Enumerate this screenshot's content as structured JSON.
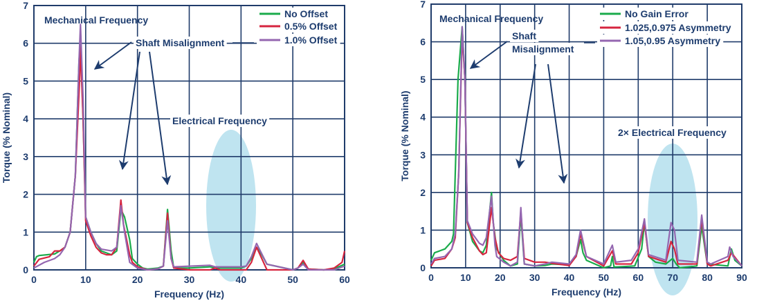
{
  "chart_data": [
    {
      "type": "line",
      "xlabel": "Frequency (Hz)",
      "ylabel": "Torque (% Nominal)",
      "xlim": [
        0,
        60
      ],
      "ylim": [
        0,
        7
      ],
      "xticks": [
        0,
        10,
        20,
        30,
        40,
        50,
        60
      ],
      "yticks": [
        0,
        1,
        2,
        3,
        4,
        5,
        6,
        7
      ],
      "grid": true,
      "legend": "top-right",
      "annotations": {
        "mechanical": "Mechanical Frequency",
        "shaft": "Shaft Misalignment",
        "electrical": "Electrical Frequency"
      },
      "series": [
        {
          "name": "No Offset",
          "color": "#1aab4b",
          "x": [
            0,
            0.5,
            1,
            4,
            5,
            6,
            7,
            8,
            8.7,
            9,
            9.5,
            10,
            11,
            12,
            13,
            15,
            16,
            16.8,
            17.5,
            18.5,
            19,
            20,
            21,
            22,
            24,
            25,
            25.8,
            26.5,
            27,
            30,
            34,
            35,
            40,
            41,
            42,
            43,
            44,
            45,
            50,
            51,
            52,
            53,
            56,
            58,
            60
          ],
          "y": [
            0.2,
            0.35,
            0.38,
            0.42,
            0.5,
            0.6,
            1.0,
            2.5,
            5.5,
            6.1,
            4,
            1.4,
            1.0,
            0.7,
            0.5,
            0.4,
            0.5,
            1.6,
            1.4,
            0.8,
            0.3,
            0.15,
            0.05,
            0.02,
            0.05,
            0.1,
            1.6,
            0.5,
            0.05,
            0.05,
            0.08,
            0.05,
            0.05,
            0.1,
            0.3,
            0.6,
            0.4,
            0.15,
            0,
            0.05,
            0.2,
            0.02,
            0,
            0.03,
            0.15
          ]
        },
        {
          "name": "0.5% Offset",
          "color": "#d6243f",
          "x": [
            0,
            1,
            3,
            4,
            5,
            6,
            7,
            8,
            8.8,
            9,
            9.5,
            10,
            11,
            12,
            13,
            14,
            15,
            16,
            16.8,
            17.3,
            18.5,
            19,
            20,
            22,
            24,
            25,
            25.8,
            26.5,
            27,
            30,
            34,
            35,
            36,
            41,
            42,
            43,
            45,
            50,
            51,
            52,
            53,
            56,
            58,
            59.5,
            60
          ],
          "y": [
            0.1,
            0.28,
            0.35,
            0.5,
            0.5,
            0.6,
            1.0,
            2.5,
            5.0,
            5.9,
            4,
            1.3,
            0.9,
            0.6,
            0.45,
            0.4,
            0.4,
            0.6,
            1.85,
            1.2,
            0.4,
            0.2,
            0.08,
            0,
            0.03,
            0.1,
            1.5,
            0.3,
            0.05,
            0,
            0,
            0.05,
            0,
            0,
            0.2,
            0.6,
            0,
            0,
            0.05,
            0.25,
            0.02,
            0,
            0.05,
            0.2,
            0.5
          ]
        },
        {
          "name": "1.0% Offset",
          "color": "#9466b0",
          "x": [
            0,
            2,
            4,
            5,
            6,
            7,
            8,
            8.7,
            9,
            9.5,
            10,
            11,
            12,
            13,
            15,
            16,
            16.8,
            17.5,
            18.5,
            20,
            22,
            24,
            25,
            25.8,
            26.5,
            27,
            34,
            35,
            40,
            41,
            42,
            43,
            45,
            50,
            51,
            52,
            53,
            56,
            58,
            60
          ],
          "y": [
            0.05,
            0.2,
            0.3,
            0.4,
            0.6,
            1.0,
            2.5,
            5.5,
            6.5,
            4.5,
            1.4,
            1.0,
            0.7,
            0.55,
            0.5,
            0.6,
            1.7,
            1.0,
            0.2,
            0.05,
            0,
            0.03,
            0.1,
            1.3,
            0.3,
            0.08,
            0.12,
            0.08,
            0.08,
            0.1,
            0.35,
            0.7,
            0.15,
            0,
            0.05,
            0.15,
            0,
            0,
            0,
            0.1
          ]
        }
      ]
    },
    {
      "type": "line",
      "xlabel": "Frequency (Hz)",
      "ylabel": "Torque (% Nominal)",
      "xlim": [
        0,
        90
      ],
      "ylim": [
        0,
        7
      ],
      "xticks": [
        0,
        10,
        20,
        30,
        40,
        50,
        60,
        70,
        80,
        90
      ],
      "yticks": [
        0,
        1,
        2,
        3,
        4,
        5,
        6,
        7
      ],
      "grid": true,
      "legend": "top-right",
      "annotations": {
        "mechanical": "Mechanical Frequency",
        "shaft_line1": "Shaft",
        "shaft_line2": "Misalignment",
        "electrical": "2× Electrical Frequency"
      },
      "series": [
        {
          "name": "No Gain Error",
          "color": "#1aab4b",
          "x": [
            0,
            1,
            4,
            6,
            6.5,
            7,
            7.8,
            9,
            9.8,
            10.5,
            12,
            14,
            15,
            16,
            17.5,
            18,
            19,
            21,
            23,
            25,
            26,
            27,
            30,
            33,
            35,
            40,
            42,
            43.3,
            44,
            45,
            50,
            52,
            52.5,
            53,
            59,
            61,
            61.8,
            63,
            65,
            68,
            70,
            71,
            72,
            77,
            78.4,
            80,
            86,
            87,
            88,
            90
          ],
          "y": [
            0.2,
            0.4,
            0.5,
            0.7,
            0.9,
            2.5,
            5,
            6.4,
            5,
            1.2,
            0.7,
            0.45,
            0.4,
            0.6,
            2.0,
            1.2,
            0.5,
            0.2,
            0.05,
            0.1,
            1.4,
            0.1,
            0.05,
            0.06,
            0.1,
            0.08,
            0.3,
            0.75,
            0.4,
            0.2,
            0,
            0.05,
            0.3,
            0.02,
            0.05,
            0.5,
            1.2,
            0.3,
            0.15,
            0.1,
            0.25,
            0.1,
            0,
            0.05,
            1.1,
            0.1,
            0.05,
            0.5,
            0.2,
            0.05
          ]
        },
        {
          "name": "1.025,0.975 Asymmetry",
          "color": "#d6243f",
          "x": [
            0,
            1,
            4,
            6,
            7,
            8,
            9,
            9.8,
            10.5,
            12,
            14,
            15,
            16,
            17.5,
            18.5,
            19.5,
            21,
            23,
            25,
            26,
            27,
            30,
            33,
            35,
            40,
            42,
            43.3,
            45,
            50,
            52.5,
            53.5,
            58,
            60,
            61.8,
            63,
            68,
            69.5,
            70.5,
            71.5,
            77,
            78.4,
            80,
            81,
            86,
            87,
            90
          ],
          "y": [
            0.05,
            0.2,
            0.25,
            0.5,
            0.8,
            2.5,
            6.2,
            5,
            1.2,
            0.8,
            0.45,
            0.35,
            0.4,
            1.6,
            0.8,
            0.4,
            0.25,
            0.2,
            0.3,
            1.5,
            0.25,
            0.15,
            0.15,
            0.12,
            0.06,
            0.3,
            0.9,
            0.3,
            0.05,
            0.45,
            0.1,
            0.1,
            0.4,
            1.2,
            0.3,
            0.15,
            0.7,
            0.5,
            0.1,
            0.1,
            1.3,
            0.1,
            0.05,
            0.2,
            0.4,
            0.05
          ]
        },
        {
          "name": "1.05,0.95 Asymmetry",
          "color": "#9466b0",
          "x": [
            0,
            1,
            4,
            6,
            7,
            8,
            9,
            9.8,
            10.5,
            12,
            14,
            15,
            16,
            17.5,
            18.5,
            19,
            21,
            23,
            25,
            26,
            27,
            30,
            33,
            35,
            40,
            42,
            43.3,
            45,
            50,
            52.5,
            53.5,
            58,
            60,
            61.8,
            63,
            68,
            69.5,
            70.5,
            71.5,
            77,
            78.4,
            80,
            81,
            86,
            86.5,
            87.5,
            90
          ],
          "y": [
            0.1,
            0.25,
            0.3,
            0.5,
            0.9,
            2.5,
            6.4,
            5,
            1.25,
            0.9,
            0.65,
            0.6,
            0.8,
            1.9,
            0.6,
            0.3,
            0.15,
            0.05,
            0.15,
            1.6,
            0.1,
            0.05,
            0.1,
            0.15,
            0.1,
            0.35,
            1.0,
            0.3,
            0.1,
            0.6,
            0.15,
            0.2,
            0.5,
            1.3,
            0.35,
            0.2,
            1.2,
            1.0,
            0.2,
            0.15,
            1.4,
            0.15,
            0.1,
            0.3,
            0.55,
            0.3,
            0.05
          ]
        }
      ]
    }
  ],
  "colors": {
    "text": "#1d3c6e",
    "grid": "#1f3b6a",
    "highlight": "#bfe4f0"
  }
}
